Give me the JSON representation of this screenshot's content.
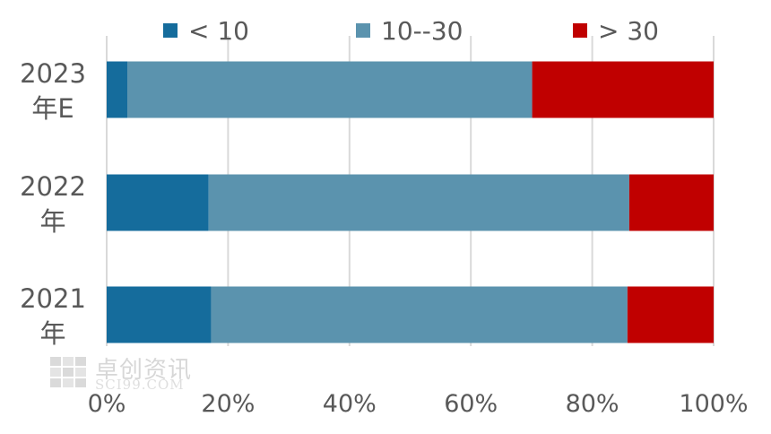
{
  "chart_data": {
    "type": "bar",
    "orientation": "horizontal",
    "stacked": "percent",
    "categories": [
      {
        "line1": "2023",
        "line2": "年E"
      },
      {
        "line1": "2022",
        "line2": "年"
      },
      {
        "line1": "2021",
        "line2": "年"
      }
    ],
    "series": [
      {
        "name": "< 10",
        "color": "#156c9c",
        "values": [
          3.4,
          16.8,
          17.2
        ]
      },
      {
        "name": "10--30",
        "color": "#5b93ae",
        "values": [
          66.7,
          69.3,
          68.6
        ]
      },
      {
        "name": "> 30",
        "color": "#c00000",
        "values": [
          29.9,
          13.9,
          14.2
        ]
      }
    ],
    "xlim": [
      0,
      100
    ],
    "xticks": [
      "0%",
      "20%",
      "40%",
      "60%",
      "80%",
      "100%"
    ],
    "grid": true,
    "legend_position": "top",
    "title": "",
    "xlabel": "",
    "ylabel": ""
  },
  "watermark": {
    "cn": "卓创资讯",
    "en": "SCI99.COM"
  }
}
